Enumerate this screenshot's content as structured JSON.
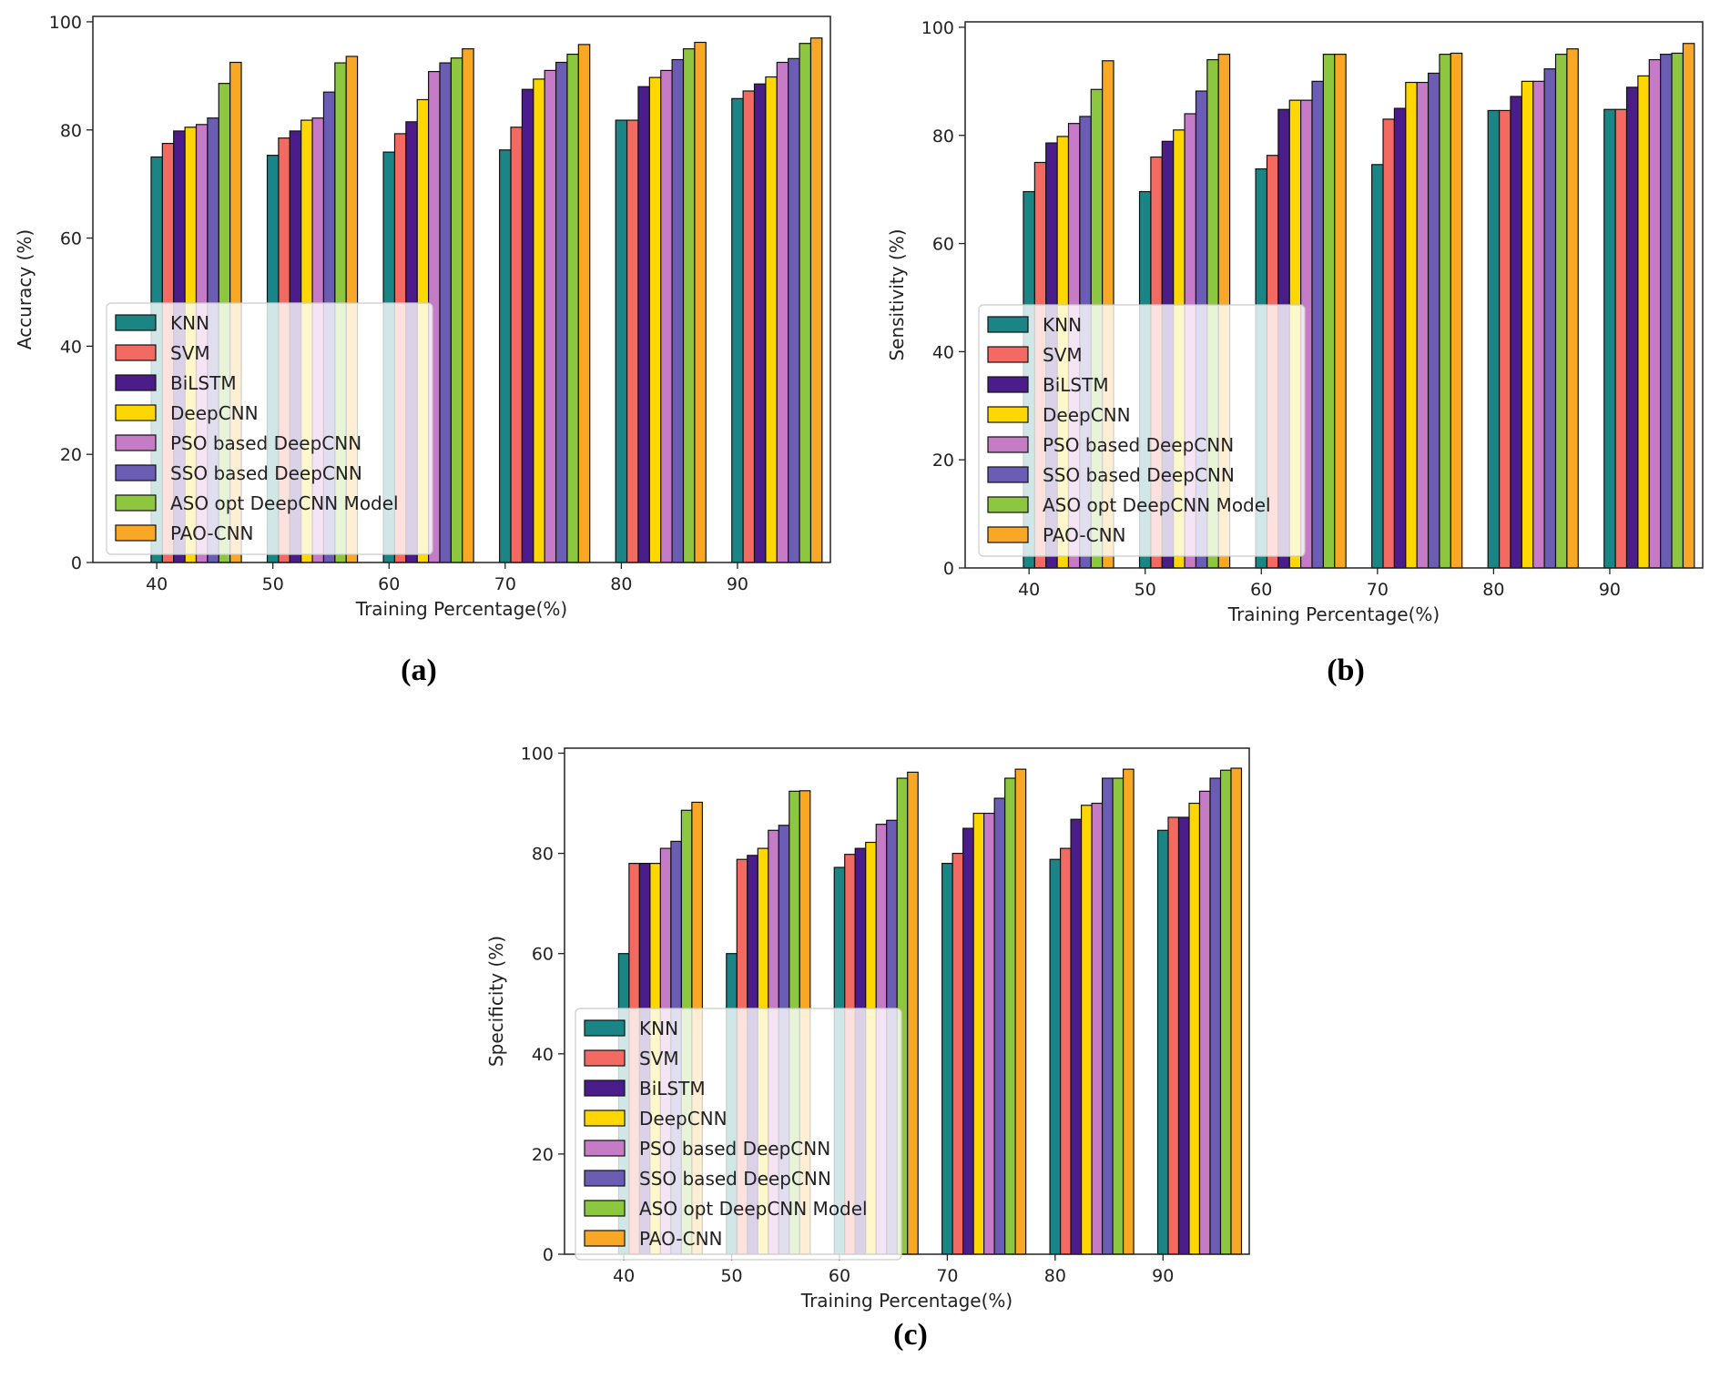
{
  "colors": {
    "KNN": "#1b8585",
    "SVM": "#f26a61",
    "BiLSTM": "#4b1d8a",
    "DeepCNN": "#ffd700",
    "PSO based DeepCNN": "#c67bc6",
    "SSO based DeepCNN": "#6a5db3",
    "ASO opt DeepCNN Model": "#8dc63f",
    "PAO-CNN": "#f9a825"
  },
  "chart_data": [
    {
      "caption": "(a)",
      "type": "bar",
      "title": "",
      "xlabel": "Training Percentage(%)",
      "ylabel": "Accuracy (%)",
      "ylim": [
        0,
        101
      ],
      "yticks": [
        0,
        20,
        40,
        60,
        80,
        100
      ],
      "legend_position": "lower-left",
      "categories": [
        "40",
        "50",
        "60",
        "70",
        "80",
        "90"
      ],
      "series": [
        {
          "name": "KNN",
          "values": [
            75,
            75.3,
            75.9,
            76.3,
            81.8,
            85.8
          ]
        },
        {
          "name": "SVM",
          "values": [
            77.5,
            78.5,
            79.3,
            80.5,
            81.8,
            87.2
          ]
        },
        {
          "name": "BiLSTM",
          "values": [
            79.8,
            79.8,
            81.5,
            87.5,
            88,
            88.5
          ]
        },
        {
          "name": "DeepCNN",
          "values": [
            80.5,
            81.8,
            85.6,
            89.4,
            89.7,
            89.8
          ]
        },
        {
          "name": "PSO based DeepCNN",
          "values": [
            81,
            82.2,
            90.8,
            91,
            91,
            92.5
          ]
        },
        {
          "name": "SSO based DeepCNN",
          "values": [
            82.2,
            87,
            92.4,
            92.5,
            93,
            93.2
          ]
        },
        {
          "name": "ASO opt DeepCNN Model",
          "values": [
            88.6,
            92.4,
            93.3,
            94,
            95,
            96
          ]
        },
        {
          "name": "PAO-CNN",
          "values": [
            92.5,
            93.6,
            95,
            95.8,
            96.2,
            97
          ]
        }
      ]
    },
    {
      "caption": "(b)",
      "type": "bar",
      "title": "",
      "xlabel": "Training Percentage(%)",
      "ylabel": "Sensitivity (%)",
      "ylim": [
        0,
        101
      ],
      "yticks": [
        0,
        20,
        40,
        60,
        80,
        100
      ],
      "legend_position": "lower-left",
      "categories": [
        "40",
        "50",
        "60",
        "70",
        "80",
        "90"
      ],
      "series": [
        {
          "name": "KNN",
          "values": [
            69.6,
            69.6,
            73.8,
            74.6,
            84.6,
            84.8
          ]
        },
        {
          "name": "SVM",
          "values": [
            75,
            76,
            76.3,
            83,
            84.6,
            84.8
          ]
        },
        {
          "name": "BiLSTM",
          "values": [
            78.6,
            78.9,
            84.8,
            85,
            87.2,
            88.9
          ]
        },
        {
          "name": "DeepCNN",
          "values": [
            79.8,
            81,
            86.5,
            89.8,
            90,
            91
          ]
        },
        {
          "name": "PSO based DeepCNN",
          "values": [
            82.2,
            84,
            86.5,
            89.8,
            90,
            94
          ]
        },
        {
          "name": "SSO based DeepCNN",
          "values": [
            83.5,
            88.2,
            90,
            91.5,
            92.3,
            95
          ]
        },
        {
          "name": "ASO opt DeepCNN Model",
          "values": [
            88.5,
            94,
            95,
            95,
            95,
            95.2
          ]
        },
        {
          "name": "PAO-CNN",
          "values": [
            93.8,
            95,
            95,
            95.2,
            96,
            97
          ]
        }
      ]
    },
    {
      "caption": "(c)",
      "type": "bar",
      "title": "",
      "xlabel": "Training Percentage(%)",
      "ylabel": "Specificity (%)",
      "ylim": [
        0,
        101
      ],
      "yticks": [
        0,
        20,
        40,
        60,
        80,
        100
      ],
      "legend_position": "lower-left",
      "categories": [
        "40",
        "50",
        "60",
        "70",
        "80",
        "90"
      ],
      "series": [
        {
          "name": "KNN",
          "values": [
            60,
            60,
            77.2,
            78,
            78.8,
            84.6
          ]
        },
        {
          "name": "SVM",
          "values": [
            78,
            78.8,
            79.8,
            80,
            81,
            87.2
          ]
        },
        {
          "name": "BiLSTM",
          "values": [
            78,
            79.6,
            81,
            85,
            86.8,
            87.2
          ]
        },
        {
          "name": "DeepCNN",
          "values": [
            78,
            81,
            82.2,
            88,
            89.6,
            90
          ]
        },
        {
          "name": "PSO based DeepCNN",
          "values": [
            81,
            84.6,
            85.8,
            88,
            90,
            92.4
          ]
        },
        {
          "name": "SSO based DeepCNN",
          "values": [
            82.4,
            85.6,
            86.6,
            91,
            95,
            95
          ]
        },
        {
          "name": "ASO opt DeepCNN Model",
          "values": [
            88.6,
            92.4,
            95,
            95,
            95,
            96.6
          ]
        },
        {
          "name": "PAO-CNN",
          "values": [
            90.2,
            92.5,
            96.2,
            96.8,
            96.8,
            97
          ]
        }
      ]
    }
  ]
}
